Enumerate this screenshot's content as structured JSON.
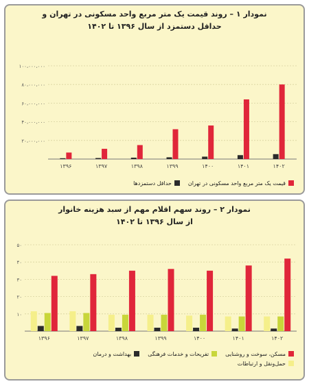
{
  "colors": {
    "red": "#e0263a",
    "black": "#2b2b2b",
    "lime": "#c8d63a",
    "yellow": "#f5ef8a",
    "panel": "#fbf6c9"
  },
  "chart_data": [
    {
      "type": "bar",
      "title_line1": "نمودار ۱ – روند قیمت یک متر مربع واحد مسکونی در تهران و",
      "title_line2": "حداقل دستمزد از سال ۱۳۹۶ تا ۱۴۰۲",
      "categories": [
        "۱۳۹۶",
        "۱۳۹۷",
        "۱۳۹۸",
        "۱۳۹۹",
        "۱۴۰۰",
        "۱۴۰۱",
        "۱۴۰۲"
      ],
      "yticks": [
        "",
        "۲۰،۰۰۰،۰۰۰",
        "۴۰،۰۰۰،۰۰۰",
        "۶۰،۰۰۰،۰۰۰",
        "۸۰،۰۰۰،۰۰۰",
        "۱۰۰،۰۰۰،۰۰۰"
      ],
      "ylim": [
        0,
        100000000
      ],
      "series": [
        {
          "name": "قیمت یک متر مربع واحد مسکونی در تهران",
          "color": "#e0263a",
          "values": [
            7000000,
            11000000,
            15000000,
            32000000,
            36000000,
            64000000,
            80000000
          ]
        },
        {
          "name": "حداقل دستمزدها",
          "color": "#2b2b2b",
          "values": [
            900000,
            1100000,
            1500000,
            1900000,
            2600000,
            4200000,
            5300000
          ]
        }
      ]
    },
    {
      "type": "bar",
      "title_line1": "نمودار ۲ – روند سهم اقلام مهم از سبد هزینه خانوار",
      "title_line2": "از سال ۱۳۹۶ تا ۱۴۰۲",
      "categories": [
        "۱۳۹۶",
        "۱۳۹۷",
        "۱۳۹۸",
        "۱۳۹۹",
        "۱۴۰۰",
        "۱۴۰۱",
        "۱۴۰۲"
      ],
      "yticks": [
        "",
        "۱۰",
        "۲۰",
        "۳۰",
        "۴۰",
        "۵۰"
      ],
      "ylim": [
        0,
        50
      ],
      "series": [
        {
          "name": "مسکن، سوخت و روشنایی",
          "color": "#e0263a",
          "values": [
            32,
            33,
            35,
            36,
            35,
            38,
            42
          ]
        },
        {
          "name": "تفریحات و خدمات فرهنگی",
          "color": "#c8d63a",
          "values": [
            10.5,
            10.5,
            9.5,
            9.5,
            9.5,
            8.5,
            8.5
          ]
        },
        {
          "name": "بهداشت و درمان",
          "color": "#2b2b2b",
          "values": [
            3,
            3,
            2,
            2,
            2,
            1.5,
            1.5
          ]
        },
        {
          "name": "حمل‌ونقل و ارتباطات",
          "color": "#f5ef8a",
          "values": [
            11.5,
            11.5,
            9.5,
            9.5,
            9,
            8.5,
            8.5
          ]
        }
      ]
    }
  ]
}
